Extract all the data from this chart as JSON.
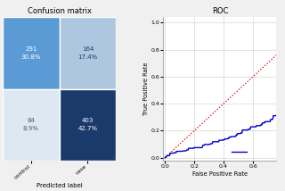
{
  "title_cm": "Confusion matrix",
  "title_roc": "ROC",
  "cm_values": [
    [
      291,
      164
    ],
    [
      84,
      403
    ]
  ],
  "cm_percents": [
    [
      "30.8%",
      "17.4%"
    ],
    [
      "8.9%",
      "42.7%"
    ]
  ],
  "cm_colors": [
    [
      "#5b9bd5",
      "#aec6df"
    ],
    [
      "#dde8f3",
      "#1a3a6b"
    ]
  ],
  "cm_text_colors": [
    [
      "white",
      "#1a3a6b"
    ],
    [
      "#555555",
      "white"
    ]
  ],
  "xlabel_cm": "Predicted label",
  "xtick_labels": [
    "control",
    "case"
  ],
  "roc_xlabel": "False Positive Rate",
  "roc_ylabel": "True Positive Rate",
  "roc_xticks": [
    0.0,
    0.2,
    0.4,
    0.6
  ],
  "roc_yticks": [
    0.0,
    0.2,
    0.4,
    0.6,
    0.8,
    1.0
  ],
  "diagonal_color": "#cc0000",
  "roc_color": "#0000cc",
  "background_color": "#f0f0f0"
}
